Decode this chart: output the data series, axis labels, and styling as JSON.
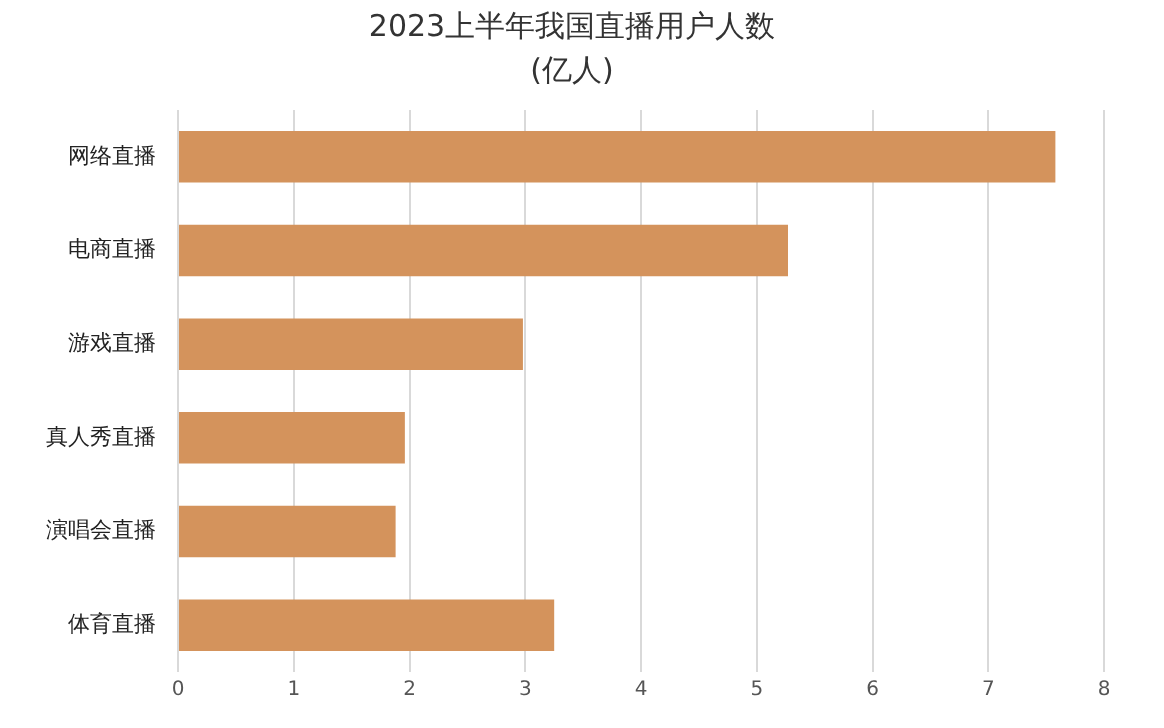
{
  "chart_data": {
    "type": "bar",
    "orientation": "horizontal",
    "title": "2023上半年我国直播用户人数",
    "subtitle": "(亿人)",
    "categories": [
      "网络直播",
      "电商直播",
      "游戏直播",
      "真人秀直播",
      "演唱会直播",
      "体育直播"
    ],
    "values": [
      7.58,
      5.27,
      2.98,
      1.96,
      1.88,
      3.25
    ],
    "color": "#d4935c",
    "xlim": [
      0,
      8
    ],
    "xticks": [
      0,
      1,
      2,
      3,
      4,
      5,
      6,
      7,
      8
    ],
    "grid": "x",
    "legend": false
  }
}
